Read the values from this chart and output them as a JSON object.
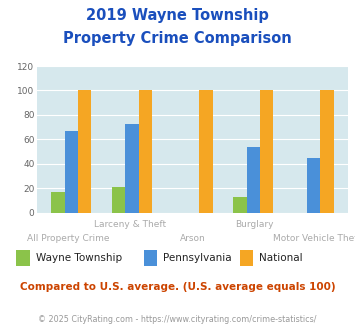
{
  "title_line1": "2019 Wayne Township",
  "title_line2": "Property Crime Comparison",
  "title_color": "#1a4fbd",
  "categories": [
    "All Property Crime",
    "Larceny & Theft",
    "Arson",
    "Burglary",
    "Motor Vehicle Theft"
  ],
  "wayne_values": [
    17,
    21,
    0,
    13,
    0
  ],
  "penn_values": [
    67,
    73,
    0,
    54,
    45
  ],
  "national_values": [
    100,
    100,
    100,
    100,
    100
  ],
  "wayne_color": "#8bc34a",
  "penn_color": "#4a90d9",
  "national_color": "#f5a623",
  "bg_color": "#d6e8ed",
  "ylim": [
    0,
    120
  ],
  "yticks": [
    0,
    20,
    40,
    60,
    80,
    100,
    120
  ],
  "legend_labels": [
    "Wayne Township",
    "Pennsylvania",
    "National"
  ],
  "note_text": "Compared to U.S. average. (U.S. average equals 100)",
  "footer_text": "© 2025 CityRating.com - https://www.cityrating.com/crime-statistics/",
  "note_color": "#cc4400",
  "footer_color": "#999999",
  "xlabel_top": [
    "",
    "Larceny & Theft",
    "",
    "Burglary",
    ""
  ],
  "xlabel_bottom": [
    "All Property Crime",
    "",
    "Arson",
    "",
    "Motor Vehicle Theft"
  ],
  "bar_width": 0.22
}
